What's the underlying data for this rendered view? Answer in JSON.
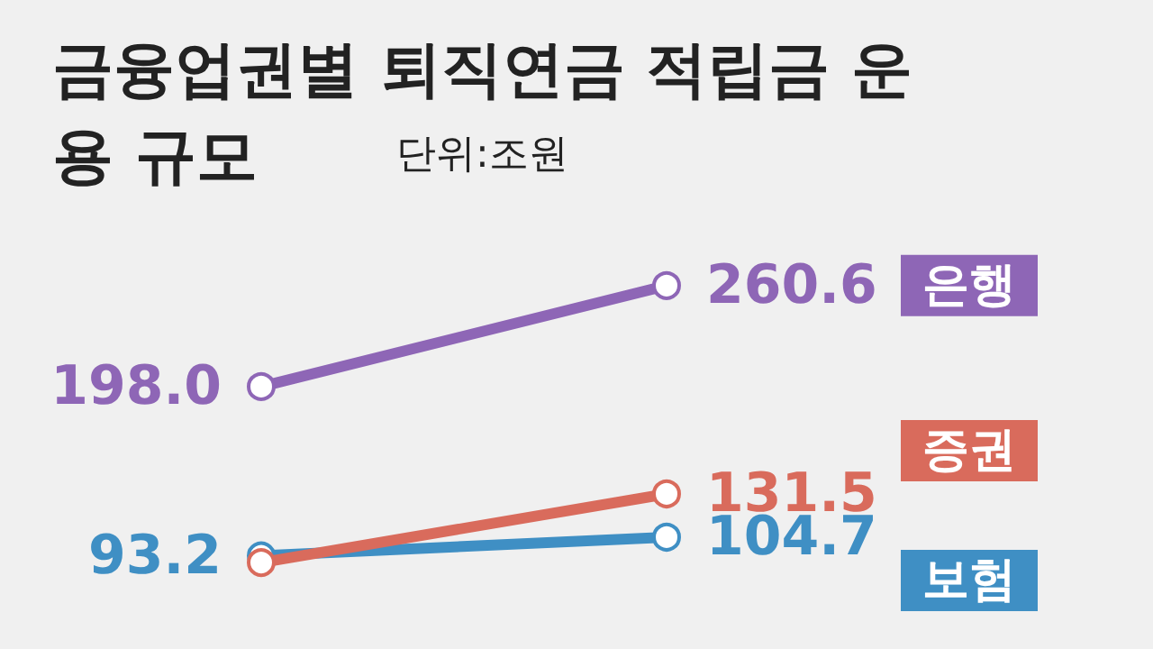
{
  "chart_data": {
    "type": "line",
    "title": "금융업권별 퇴직연금 적립금 운용 규모",
    "subtitle": "단위:조원",
    "categories": [
      null,
      null
    ],
    "marker": "circle",
    "legend": false,
    "grid": false,
    "series": [
      {
        "name": "은행",
        "color": "#8e66b6",
        "values": [
          198.0,
          260.6
        ],
        "value_labels": [
          "198.0",
          "260.6"
        ]
      },
      {
        "name": "증권",
        "color": "#d96b5c",
        "values": [
          89,
          131.5
        ],
        "value_labels": [
          null,
          "131.5"
        ]
      },
      {
        "name": "보험",
        "color": "#3f8fc4",
        "values": [
          93.2,
          104.7
        ],
        "value_labels": [
          "93.2",
          "104.7"
        ]
      }
    ]
  }
}
